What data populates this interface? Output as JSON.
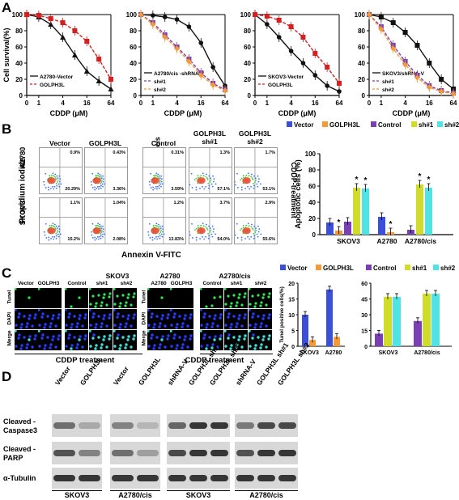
{
  "panel_letters": {
    "a": "A",
    "b": "B",
    "c": "C",
    "d": "D"
  },
  "colors": {
    "black": "#111111",
    "red": "#d42020",
    "purple": "#7a3fb5",
    "orange": "#f39a3a",
    "blue": "#3b4fd8",
    "green": "#cfdc2a",
    "cyan": "#4fe3e3"
  },
  "chart_data": [
    {
      "type": "line",
      "id": "A1",
      "xlabel": "CDDP (μM)",
      "ylabel": "Cell survival(%)",
      "x": [
        0,
        1,
        2,
        4,
        8,
        16,
        32,
        64
      ],
      "xticks": [
        "0",
        "1",
        "4",
        "16",
        "64"
      ],
      "ylim": [
        0,
        100
      ],
      "yticks": [
        0,
        20,
        40,
        60,
        80,
        100
      ],
      "series": [
        {
          "name": "A2780-Vector",
          "color": "#111111",
          "dash": false,
          "marker": "triangle",
          "values": [
            100,
            97,
            88,
            72,
            50,
            30,
            18,
            8
          ]
        },
        {
          "name": "GOLPH3L",
          "color": "#d42020",
          "dash": true,
          "marker": "square",
          "values": [
            100,
            99,
            95,
            90,
            80,
            67,
            45,
            20
          ]
        }
      ]
    },
    {
      "type": "line",
      "id": "A2",
      "xlabel": "CDDP (μM)",
      "ylabel": "",
      "x": [
        0,
        1,
        2,
        4,
        8,
        16,
        32,
        64
      ],
      "xticks": [
        "0",
        "1",
        "4",
        "16",
        "64"
      ],
      "ylim": [
        0,
        100
      ],
      "yticks": [
        0,
        20,
        40,
        60,
        80,
        100
      ],
      "series": [
        {
          "name": "A2780/cis -shRNA-V",
          "color": "#111111",
          "dash": false,
          "marker": "circle",
          "values": [
            100,
            99,
            97,
            94,
            85,
            65,
            35,
            12
          ]
        },
        {
          "name": "sh#1",
          "color": "#7a3fb5",
          "dash": true,
          "marker": "square",
          "values": [
            100,
            90,
            75,
            60,
            45,
            28,
            15,
            7
          ]
        },
        {
          "name": "sh#2",
          "color": "#f39a3a",
          "dash": true,
          "marker": "diamond",
          "values": [
            100,
            88,
            72,
            58,
            42,
            25,
            13,
            6
          ]
        }
      ]
    },
    {
      "type": "line",
      "id": "A3",
      "xlabel": "CDDP (μM)",
      "ylabel": "",
      "x": [
        0,
        1,
        2,
        4,
        8,
        16,
        32,
        64
      ],
      "xticks": [
        "0",
        "1",
        "4",
        "16",
        "64"
      ],
      "ylim": [
        0,
        100
      ],
      "yticks": [
        0,
        20,
        40,
        60,
        80,
        100
      ],
      "series": [
        {
          "name": "SKOV3-Vector",
          "color": "#111111",
          "dash": false,
          "marker": "circle",
          "values": [
            100,
            88,
            72,
            55,
            40,
            25,
            12,
            5
          ]
        },
        {
          "name": "GOLPH3L",
          "color": "#d42020",
          "dash": true,
          "marker": "square",
          "values": [
            100,
            98,
            93,
            85,
            72,
            52,
            35,
            15
          ]
        }
      ]
    },
    {
      "type": "line",
      "id": "A4",
      "xlabel": "CDDP (μM)",
      "ylabel": "",
      "x": [
        0,
        1,
        2,
        4,
        8,
        16,
        32,
        64
      ],
      "xticks": [
        "0",
        "1",
        "4",
        "16",
        "64"
      ],
      "ylim": [
        0,
        100
      ],
      "yticks": [
        0,
        20,
        40,
        60,
        80,
        100
      ],
      "series": [
        {
          "name": "SKOV3/shRNA-V",
          "color": "#111111",
          "dash": false,
          "marker": "square",
          "values": [
            100,
            97,
            90,
            78,
            62,
            40,
            20,
            8
          ]
        },
        {
          "name": "sh#1",
          "color": "#7a3fb5",
          "dash": true,
          "marker": "square",
          "values": [
            100,
            85,
            62,
            42,
            25,
            12,
            6,
            3
          ]
        },
        {
          "name": "sh#2",
          "color": "#f39a3a",
          "dash": true,
          "marker": "diamond",
          "values": [
            100,
            82,
            58,
            38,
            22,
            10,
            5,
            2
          ]
        }
      ]
    },
    {
      "type": "bar",
      "id": "B",
      "ylabel": "Apoptotic cells (%)",
      "ylim": [
        0,
        100
      ],
      "yticks": [
        0,
        20,
        40,
        60,
        80,
        100
      ],
      "legend": [
        "Vector",
        "GOLPH3L",
        "Control",
        "sh#1",
        "sh#2"
      ],
      "groups": [
        {
          "name": "SKOV3",
          "bars": [
            {
              "s": "Vector",
              "v": 15
            },
            {
              "s": "GOLPH3L",
              "v": 5
            },
            {
              "s": "Control",
              "v": 16
            },
            {
              "s": "sh#1",
              "v": 58
            },
            {
              "s": "sh#2",
              "v": 57
            }
          ]
        },
        {
          "name": "A2780",
          "bars": [
            {
              "s": "Vector",
              "v": 22
            },
            {
              "s": "GOLPH3L",
              "v": 3
            }
          ]
        },
        {
          "name": "A2780/cis",
          "bars": [
            {
              "s": "Control",
              "v": 6
            },
            {
              "s": "sh#1",
              "v": 62
            },
            {
              "s": "sh#2",
              "v": 58
            }
          ]
        }
      ]
    },
    {
      "type": "bar",
      "id": "C1",
      "ylabel": "Tunel positive cells(%)",
      "ylim": [
        0,
        20
      ],
      "yticks": [
        0,
        5,
        10,
        15,
        20
      ],
      "legend": [
        "Vector",
        "GOLPH3L"
      ],
      "groups": [
        {
          "name": "SKOV3",
          "bars": [
            {
              "s": "Vector",
              "v": 10
            },
            {
              "s": "GOLPH3L",
              "v": 2
            }
          ]
        },
        {
          "name": "A2780",
          "bars": [
            {
              "s": "Vector",
              "v": 18
            },
            {
              "s": "GOLPH3L",
              "v": 3
            }
          ]
        }
      ]
    },
    {
      "type": "bar",
      "id": "C2",
      "ylabel": "",
      "ylim": [
        0,
        60
      ],
      "yticks": [
        0,
        15,
        30,
        45,
        60
      ],
      "legend": [
        "Control",
        "sh#1",
        "sh#2"
      ],
      "groups": [
        {
          "name": "SKOV3",
          "bars": [
            {
              "s": "Control",
              "v": 12
            },
            {
              "s": "sh#1",
              "v": 47
            },
            {
              "s": "sh#2",
              "v": 47
            }
          ]
        },
        {
          "name": "A2780/cis",
          "bars": [
            {
              "s": "Control",
              "v": 24
            },
            {
              "s": "sh#1",
              "v": 50
            },
            {
              "s": "sh#2",
              "v": 50
            }
          ]
        }
      ]
    }
  ],
  "flow": {
    "col_titles": [
      "Vector",
      "GOLPH3L",
      "Control",
      "GOLPH3L sh#1",
      "GOLPH3L sh#2"
    ],
    "row1_labels": [
      "A2780",
      "A2780/cis"
    ],
    "row2_label": "SKOV3",
    "ylabel": "Propidium iodide",
    "xlabel": "Annexin V-FITC",
    "side_label": "CDDP-treatment",
    "quad_top": [
      "0.9%",
      "0.43%",
      "0.31%",
      "1.3%",
      "1.7%",
      "1.1%",
      "1.04%",
      "1.2%",
      "3.7%",
      "2.9%"
    ],
    "quad_bottom": [
      "20.29%",
      "3.36%",
      "3.59%",
      "57.1%",
      "53.1%",
      "15.2%",
      "2.08%",
      "13.83%",
      "54.0%",
      "55.6%"
    ]
  },
  "tunel": {
    "skov3_title": "SKOV3",
    "a2780_title": "A2780",
    "a2780cis_title": "A2780/cis",
    "cols": [
      "Vector",
      "GOLPH3",
      "Control",
      "sh#1",
      "sh#2"
    ],
    "cols_right": [
      "A2780",
      "GOLPH3"
    ],
    "rows": [
      "Tunel",
      "DAPI",
      "Merge"
    ],
    "footer": "CDDP treatment"
  },
  "western": {
    "lanes_left1": [
      "Vector",
      "GOLPH3L"
    ],
    "lanes_left2": [
      "Vector",
      "GOLPH3L"
    ],
    "lanes_right1": [
      "shRNA-V",
      "GOLPH3L sh#1",
      "GOLPH3L sh#2"
    ],
    "lanes_right2": [
      "shRNA-V",
      "GOLPH3L sh#1",
      "GOLPH3L sh#2"
    ],
    "rows": [
      "Cleaved -Caspase3",
      "Cleaved -PARP",
      "α-Tubulin"
    ],
    "bottom": [
      "SKOV3",
      "A2780/cis",
      "SKOV3",
      "A2780/cis"
    ]
  }
}
